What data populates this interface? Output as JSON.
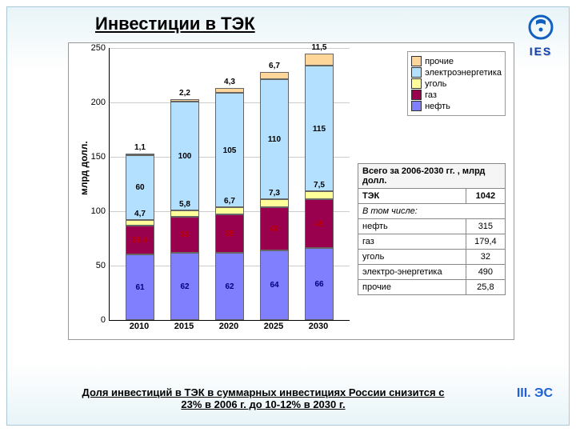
{
  "title": "Инвестиции в ТЭК",
  "logoText": "IES",
  "ylabel": "млрд долл.",
  "ylim": [
    0,
    250
  ],
  "ytick_step": 50,
  "categories": [
    "2010",
    "2015",
    "2020",
    "2025",
    "2030"
  ],
  "seriesOrder": [
    "oil",
    "gas",
    "coal",
    "elec",
    "other"
  ],
  "seriesMeta": {
    "other": {
      "label": "прочие",
      "color": "#ffd699"
    },
    "elec": {
      "label": "электроэнергетика",
      "color": "#b3e0ff"
    },
    "coal": {
      "label": "уголь",
      "color": "#ffff99"
    },
    "gas": {
      "label": "газ",
      "color": "#99004d"
    },
    "oil": {
      "label": "нефть",
      "color": "#8080ff"
    }
  },
  "legendOrder": [
    "other",
    "elec",
    "coal",
    "gas",
    "oil"
  ],
  "stacks": [
    {
      "oil": 61,
      "gas": 26.4,
      "coal": 4.7,
      "elec": 60,
      "other": 1.1,
      "oilColor": "#000080",
      "gasColor": "#c00000"
    },
    {
      "oil": 62,
      "gas": 33,
      "coal": 5.8,
      "elec": 100,
      "other": 2.2,
      "oilColor": "#000080",
      "gasColor": "#c00000"
    },
    {
      "oil": 62,
      "gas": 35,
      "coal": 6.7,
      "elec": 105,
      "other": 4.3,
      "oilColor": "#000080",
      "gasColor": "#c00000"
    },
    {
      "oil": 64,
      "gas": 40,
      "coal": 7.3,
      "elec": 110,
      "other": 6.7,
      "oilColor": "#000080",
      "gasColor": "#c00000"
    },
    {
      "oil": 66,
      "gas": 45,
      "coal": 7.5,
      "elec": 115,
      "other": 11.5,
      "oilColor": "#000080",
      "gasColor": "#c00000"
    }
  ],
  "labelOverrides": {
    "0-gas": "26,4",
    "0-coal": "4,7",
    "1-coal": "5,8",
    "2-coal": "6,7",
    "3-coal": "7,3",
    "4-coal": "7,5",
    "0-other": "1,1",
    "1-other": "2,2",
    "2-other": "4,3",
    "3-other": "6,7",
    "4-other": "11,5"
  },
  "tableHeader": "Всего за 2006-2030 гг. , млрд долл.",
  "tableRows": [
    {
      "name": "ТЭК",
      "val": "1042",
      "bold": true
    },
    {
      "name": "В том числе:",
      "val": "",
      "ital": true,
      "span": true
    },
    {
      "name": "нефть",
      "val": "315"
    },
    {
      "name": "газ",
      "val": "179,4"
    },
    {
      "name": "уголь",
      "val": "32"
    },
    {
      "name": "электро-энергетика",
      "val": "490"
    },
    {
      "name": "прочие",
      "val": "25,8"
    }
  ],
  "footer": "Доля инвестиций в ТЭК в суммарных инвестициях России снизится с 23% в 2006 г. до 10-12% в 2030 г.",
  "cornerLabel": "III. ЭС"
}
